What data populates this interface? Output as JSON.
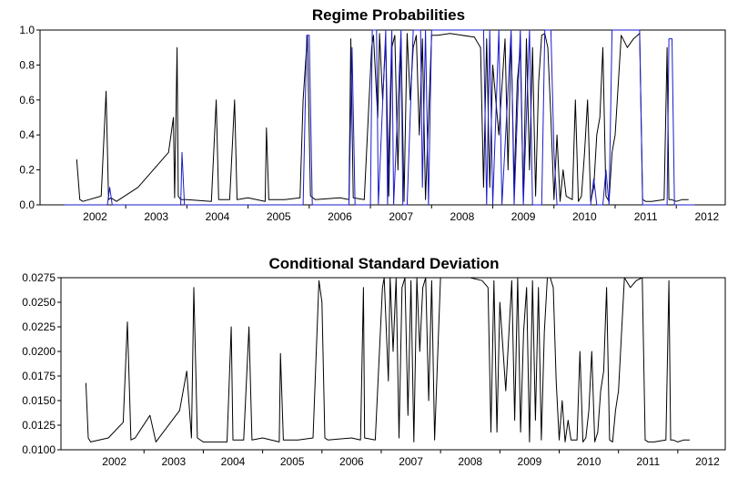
{
  "chart_data": [
    {
      "type": "line",
      "title": "Regime Probabilities",
      "xlabel": "",
      "ylabel": "",
      "x_ticks": [
        "2002",
        "2003",
        "2004",
        "2005",
        "2006",
        "2007",
        "2008",
        "2009",
        "2010",
        "2011",
        "2012"
      ],
      "xlim": [
        2001.6,
        2012.8
      ],
      "ylim": [
        0,
        1
      ],
      "y_ticks": [
        "0.0",
        "0.2",
        "0.4",
        "0.6",
        "0.8",
        "1.0"
      ],
      "y_tick_values": [
        0,
        0.2,
        0.4,
        0.6,
        0.8,
        1.0
      ],
      "grid": false,
      "colors": {
        "series_1": "#000000",
        "series_2": "#1a1acc"
      },
      "series": [
        {
          "x": [
            2002.2,
            2002.25,
            2002.3,
            2002.6,
            2002.68,
            2002.72,
            2002.76,
            2002.85,
            2003.2,
            2003.7,
            2003.78,
            2003.8,
            2003.84,
            2003.86,
            2003.9,
            2004.0,
            2004.4,
            2004.48,
            2004.52,
            2004.7,
            2004.78,
            2004.82,
            2005.0,
            2005.28,
            2005.3,
            2005.34,
            2005.6,
            2005.85,
            2005.9,
            2005.97,
            2006.02,
            2006.1,
            2006.5,
            2006.65,
            2006.68,
            2006.72,
            2006.9,
            2007.02,
            2007.05,
            2007.12,
            2007.15,
            2007.2,
            2007.25,
            2007.3,
            2007.35,
            2007.4,
            2007.45,
            2007.5,
            2007.55,
            2007.6,
            2007.65,
            2007.7,
            2007.75,
            2007.8,
            2007.85,
            2007.9,
            2008.0,
            2008.1,
            2008.3,
            2008.5,
            2008.7,
            2008.8,
            2008.85,
            2008.9,
            2008.95,
            2009.0,
            2009.1,
            2009.2,
            2009.25,
            2009.3,
            2009.35,
            2009.4,
            2009.45,
            2009.5,
            2009.55,
            2009.6,
            2009.65,
            2009.7,
            2009.75,
            2009.8,
            2009.85,
            2009.9,
            2009.95,
            2010.0,
            2010.05,
            2010.1,
            2010.15,
            2010.2,
            2010.3,
            2010.35,
            2010.4,
            2010.45,
            2010.5,
            2010.55,
            2010.6,
            2010.65,
            2010.7,
            2010.75,
            2010.8,
            2010.85,
            2010.9,
            2010.95,
            2011.0,
            2011.1,
            2011.2,
            2011.3,
            2011.4,
            2011.45,
            2011.5,
            2011.6,
            2011.8,
            2011.85,
            2011.88,
            2011.92,
            2012.0,
            2012.1,
            2012.2
          ],
          "y": [
            0.26,
            0.03,
            0.02,
            0.05,
            0.65,
            0.03,
            0.04,
            0.02,
            0.1,
            0.3,
            0.5,
            0.04,
            0.9,
            0.05,
            0.03,
            0.03,
            0.02,
            0.6,
            0.03,
            0.03,
            0.6,
            0.03,
            0.04,
            0.02,
            0.44,
            0.03,
            0.03,
            0.04,
            0.6,
            0.97,
            0.05,
            0.03,
            0.04,
            0.03,
            0.95,
            0.04,
            0.03,
            0.9,
            0.97,
            0.5,
            0.98,
            0.6,
            0.95,
            0.05,
            0.9,
            0.97,
            0.2,
            0.95,
            0.02,
            0.98,
            0.6,
            0.9,
            0.97,
            0.4,
            0.95,
            0.03,
            0.97,
            0.97,
            0.98,
            0.97,
            0.96,
            0.9,
            0.1,
            0.95,
            0.1,
            0.8,
            0.4,
            0.95,
            0.2,
            0.97,
            0.1,
            0.7,
            0.9,
            0.02,
            0.95,
            0.2,
            0.9,
            0.05,
            0.7,
            0.97,
            0.98,
            0.9,
            0.5,
            0.03,
            0.4,
            0.02,
            0.2,
            0.05,
            0.03,
            0.6,
            0.02,
            0.05,
            0.3,
            0.6,
            0.02,
            0.1,
            0.4,
            0.5,
            0.9,
            0.05,
            0.02,
            0.3,
            0.4,
            0.97,
            0.9,
            0.95,
            0.98,
            0.03,
            0.02,
            0.02,
            0.03,
            0.9,
            0.03,
            0.03,
            0.02,
            0.03,
            0.03
          ]
        },
        {
          "x": [
            2002.0,
            2002.7,
            2002.74,
            2002.78,
            2003.9,
            2003.92,
            2003.96,
            2005.9,
            2005.96,
            2006.0,
            2006.05,
            2006.65,
            2006.7,
            2006.75,
            2007.0,
            2007.03,
            2007.1,
            2007.13,
            2007.25,
            2007.28,
            2007.35,
            2007.38,
            2007.5,
            2007.53,
            2007.6,
            2007.7,
            2007.82,
            2007.85,
            2007.9,
            2007.95,
            2008.0,
            2008.5,
            2008.85,
            2008.9,
            2008.95,
            2009.0,
            2009.1,
            2009.15,
            2009.3,
            2009.35,
            2009.45,
            2009.5,
            2009.6,
            2009.65,
            2009.8,
            2009.85,
            2009.95,
            2010.0,
            2010.05,
            2010.2,
            2010.6,
            2010.65,
            2010.7,
            2010.8,
            2010.85,
            2010.9,
            2010.95,
            2011.0,
            2011.1,
            2011.4,
            2011.45,
            2011.5,
            2011.85,
            2011.88,
            2011.93,
            2011.97,
            2012.3
          ],
          "y": [
            0.0,
            0.0,
            0.1,
            0.0,
            0.0,
            0.3,
            0.0,
            0.0,
            0.97,
            0.97,
            0.0,
            0.0,
            0.9,
            0.0,
            0.0,
            1.0,
            1.0,
            0.0,
            1.0,
            0.0,
            1.0,
            0.0,
            1.0,
            0.0,
            0.0,
            1.0,
            1.0,
            0.1,
            1.0,
            0.0,
            1.0,
            1.0,
            1.0,
            0.0,
            1.0,
            0.0,
            1.0,
            0.0,
            1.0,
            0.0,
            1.0,
            0.0,
            1.0,
            0.0,
            0.0,
            1.0,
            1.0,
            0.3,
            0.0,
            0.0,
            0.0,
            0.15,
            0.0,
            0.0,
            0.2,
            0.0,
            1.0,
            1.0,
            1.0,
            1.0,
            0.0,
            0.0,
            0.0,
            0.95,
            0.95,
            0.0,
            0.0
          ]
        }
      ]
    },
    {
      "type": "line",
      "title": "Conditional Standard Deviation",
      "xlabel": "",
      "ylabel": "",
      "x_ticks": [
        "2002",
        "2003",
        "2004",
        "2005",
        "2006",
        "2007",
        "2008",
        "2009",
        "2010",
        "2011",
        "2012"
      ],
      "xlim": [
        2001.6,
        2012.8
      ],
      "ylim": [
        0.01,
        0.0275
      ],
      "y_ticks": [
        "0.0100",
        "0.0125",
        "0.0150",
        "0.0175",
        "0.0200",
        "0.0225",
        "0.0250",
        "0.0275"
      ],
      "y_tick_values": [
        0.01,
        0.0125,
        0.015,
        0.0175,
        0.02,
        0.0225,
        0.025,
        0.0275
      ],
      "grid": false,
      "colors": {
        "series_1": "#000000"
      },
      "series": [
        {
          "x": [
            2002.02,
            2002.06,
            2002.1,
            2002.4,
            2002.65,
            2002.72,
            2002.78,
            2002.85,
            2003.1,
            2003.2,
            2003.6,
            2003.72,
            2003.8,
            2003.84,
            2003.9,
            2004.0,
            2004.4,
            2004.47,
            2004.5,
            2004.68,
            2004.77,
            2004.82,
            2005.0,
            2005.28,
            2005.3,
            2005.35,
            2005.6,
            2005.85,
            2005.95,
            2006.0,
            2006.05,
            2006.1,
            2006.5,
            2006.65,
            2006.7,
            2006.72,
            2006.9,
            2007.02,
            2007.05,
            2007.12,
            2007.15,
            2007.2,
            2007.25,
            2007.3,
            2007.35,
            2007.4,
            2007.45,
            2007.5,
            2007.55,
            2007.6,
            2007.65,
            2007.7,
            2007.75,
            2007.8,
            2007.85,
            2007.9,
            2008.0,
            2008.1,
            2008.3,
            2008.5,
            2008.7,
            2008.8,
            2008.85,
            2008.9,
            2008.95,
            2009.0,
            2009.1,
            2009.2,
            2009.25,
            2009.3,
            2009.35,
            2009.4,
            2009.45,
            2009.5,
            2009.55,
            2009.6,
            2009.65,
            2009.7,
            2009.75,
            2009.8,
            2009.85,
            2009.9,
            2009.95,
            2010.0,
            2010.05,
            2010.1,
            2010.15,
            2010.2,
            2010.3,
            2010.35,
            2010.4,
            2010.45,
            2010.5,
            2010.55,
            2010.6,
            2010.65,
            2010.7,
            2010.75,
            2010.8,
            2010.85,
            2010.9,
            2010.95,
            2011.0,
            2011.1,
            2011.2,
            2011.3,
            2011.4,
            2011.45,
            2011.5,
            2011.6,
            2011.8,
            2011.85,
            2011.88,
            2011.92,
            2012.0,
            2012.1,
            2012.2
          ],
          "y": [
            0.0168,
            0.0112,
            0.0108,
            0.0112,
            0.0128,
            0.023,
            0.011,
            0.0112,
            0.0135,
            0.0108,
            0.014,
            0.018,
            0.0112,
            0.0265,
            0.0112,
            0.0108,
            0.0108,
            0.0225,
            0.011,
            0.011,
            0.0225,
            0.011,
            0.0112,
            0.0108,
            0.0198,
            0.011,
            0.011,
            0.0112,
            0.0272,
            0.025,
            0.0112,
            0.011,
            0.0112,
            0.011,
            0.0265,
            0.0112,
            0.011,
            0.0265,
            0.0275,
            0.017,
            0.0275,
            0.02,
            0.0275,
            0.0112,
            0.0265,
            0.0275,
            0.0135,
            0.0272,
            0.0108,
            0.0275,
            0.02,
            0.0265,
            0.0275,
            0.015,
            0.0272,
            0.011,
            0.0275,
            0.0275,
            0.0275,
            0.0275,
            0.0272,
            0.0265,
            0.0118,
            0.0272,
            0.0118,
            0.025,
            0.016,
            0.0272,
            0.013,
            0.0275,
            0.0118,
            0.022,
            0.0265,
            0.0108,
            0.0272,
            0.013,
            0.0265,
            0.011,
            0.022,
            0.0275,
            0.0275,
            0.0265,
            0.017,
            0.011,
            0.015,
            0.0108,
            0.013,
            0.011,
            0.011,
            0.02,
            0.0108,
            0.0112,
            0.014,
            0.02,
            0.0108,
            0.0118,
            0.016,
            0.018,
            0.0265,
            0.011,
            0.0108,
            0.014,
            0.016,
            0.0275,
            0.0265,
            0.0272,
            0.0275,
            0.011,
            0.0108,
            0.0108,
            0.011,
            0.0272,
            0.011,
            0.011,
            0.0108,
            0.011,
            0.011
          ]
        }
      ]
    }
  ]
}
